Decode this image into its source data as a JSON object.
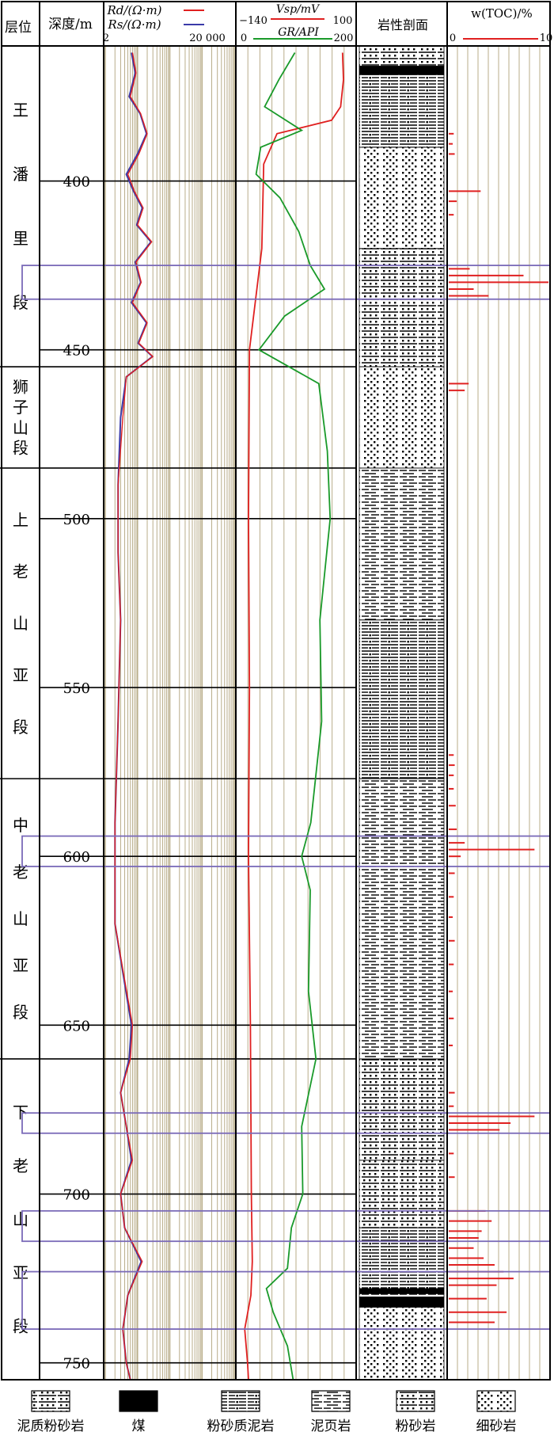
{
  "headers": {
    "layer": "层位",
    "depth": "深度/m",
    "rd": "Rd/(Ω·m)",
    "rs": "Rs/(Ω·m)",
    "res_min": "2",
    "res_max": "20 000",
    "vsp": "Vsp/mV",
    "vsp_min": "−140",
    "vsp_max": "100",
    "gr": "GR/API",
    "gr_min": "0",
    "gr_max": "200",
    "lith": "岩性剖面",
    "toc": "w(TOC)/%",
    "toc_min": "0",
    "toc_max": "10"
  },
  "colors": {
    "rd": "#e02020",
    "rs": "#3a3aa8",
    "vsp": "#e02020",
    "gr": "#1a9a2a",
    "toc": "#e02020",
    "grid": "#b9ad8a",
    "highlight": "#7a6ab8"
  },
  "formations": [
    {
      "name": "王潘里段",
      "top": 360,
      "bottom": 455
    },
    {
      "name": "狮子山段",
      "top": 455,
      "bottom": 485
    },
    {
      "name": "上老山亚段",
      "top": 485,
      "bottom": 577
    },
    {
      "name": "中老山亚段",
      "top": 577,
      "bottom": 660
    },
    {
      "name": "下老山亚段",
      "top": 660,
      "bottom": 755
    }
  ],
  "depth_ticks": [
    400,
    450,
    500,
    550,
    600,
    650,
    700,
    750
  ],
  "highlights": [
    {
      "top": 425,
      "bottom": 435
    },
    {
      "top": 594,
      "bottom": 603
    },
    {
      "top": 676,
      "bottom": 682
    },
    {
      "top": 705,
      "bottom": 714
    },
    {
      "top": 723,
      "bottom": 740
    }
  ],
  "legend": [
    {
      "label": "泥质粉砂岩",
      "pattern": "muddy-siltstone"
    },
    {
      "label": "煤",
      "pattern": "coal"
    },
    {
      "label": "粉砂质泥岩",
      "pattern": "silty-mudstone"
    },
    {
      "label": "泥页岩",
      "pattern": "shale"
    },
    {
      "label": "粉砂岩",
      "pattern": "siltstone"
    },
    {
      "label": "细砂岩",
      "pattern": "fine-sandstone"
    }
  ],
  "chart_data": {
    "type": "line",
    "depth_range": [
      360,
      755
    ],
    "resistivity": {
      "xlim": [
        2,
        20000
      ],
      "log": true,
      "depth": [
        362,
        368,
        375,
        380,
        386,
        392,
        398,
        403,
        408,
        413,
        418,
        424,
        430,
        436,
        442,
        448,
        452,
        458,
        470,
        490,
        510,
        530,
        560,
        590,
        620,
        650,
        660,
        670,
        680,
        690,
        700,
        710,
        720,
        730,
        740,
        750,
        755
      ],
      "rd": [
        14,
        18,
        12,
        25,
        40,
        22,
        10,
        16,
        30,
        20,
        55,
        18,
        26,
        14,
        40,
        22,
        60,
        9,
        7,
        5,
        5,
        6,
        5,
        4,
        4,
        14,
        12,
        6,
        9,
        14,
        6,
        8,
        28,
        10,
        7,
        9,
        12
      ],
      "rs": [
        13,
        17,
        11,
        24,
        38,
        20,
        9,
        15,
        28,
        19,
        52,
        17,
        25,
        13,
        38,
        21,
        58,
        9,
        6,
        5,
        5,
        6,
        5,
        4,
        4,
        13,
        11,
        6,
        9,
        13,
        6,
        8,
        26,
        10,
        7,
        9,
        12
      ]
    },
    "vsp": {
      "xlim": [
        -140,
        100
      ],
      "depth": [
        362,
        370,
        378,
        382,
        386,
        395,
        420,
        450,
        500,
        550,
        600,
        650,
        700,
        720,
        730,
        740,
        750,
        755
      ],
      "values": [
        78,
        80,
        74,
        55,
        -60,
        -88,
        -92,
        -118,
        -120,
        -118,
        -120,
        -116,
        -114,
        -112,
        -115,
        -128,
        -122,
        -120
      ]
    },
    "gr": {
      "xlim": [
        0,
        200
      ],
      "depth": [
        362,
        370,
        378,
        385,
        390,
        398,
        405,
        415,
        425,
        432,
        440,
        450,
        460,
        480,
        500,
        530,
        560,
        590,
        600,
        610,
        640,
        660,
        680,
        700,
        710,
        722,
        728,
        735,
        745,
        755
      ],
      "values": [
        98,
        70,
        45,
        110,
        38,
        30,
        72,
        105,
        125,
        150,
        80,
        35,
        140,
        155,
        160,
        142,
        145,
        126,
        110,
        125,
        122,
        135,
        110,
        112,
        92,
        85,
        48,
        60,
        85,
        95
      ]
    },
    "lithology": [
      {
        "top": 360,
        "bottom": 366,
        "type": "muddy-siltstone"
      },
      {
        "top": 366,
        "bottom": 368.5,
        "type": "coal"
      },
      {
        "top": 368.5,
        "bottom": 390,
        "type": "silty-mudstone"
      },
      {
        "top": 390,
        "bottom": 420,
        "type": "fine-sandstone"
      },
      {
        "top": 420,
        "bottom": 455,
        "type": "muddy-siltstone"
      },
      {
        "top": 455,
        "bottom": 485,
        "type": "fine-sandstone"
      },
      {
        "top": 485,
        "bottom": 530,
        "type": "shale"
      },
      {
        "top": 530,
        "bottom": 577,
        "type": "silty-mudstone"
      },
      {
        "top": 577,
        "bottom": 660,
        "type": "shale"
      },
      {
        "top": 660,
        "bottom": 690,
        "type": "muddy-siltstone"
      },
      {
        "top": 690,
        "bottom": 710,
        "type": "siltstone"
      },
      {
        "top": 710,
        "bottom": 728,
        "type": "silty-mudstone"
      },
      {
        "top": 728,
        "bottom": 729.5,
        "type": "coal"
      },
      {
        "top": 729.5,
        "bottom": 730.5,
        "type": "shale"
      },
      {
        "top": 730.5,
        "bottom": 733.5,
        "type": "coal"
      },
      {
        "top": 733.5,
        "bottom": 755,
        "type": "fine-sandstone"
      }
    ],
    "toc": {
      "xlim": [
        0,
        10
      ],
      "depth": [
        386,
        389,
        392,
        403,
        406,
        410,
        426,
        428,
        430,
        432,
        434,
        460,
        462,
        570,
        573,
        576,
        580,
        585,
        592,
        596,
        598,
        600,
        605,
        612,
        618,
        625,
        632,
        640,
        648,
        656,
        670,
        674,
        677,
        679,
        681,
        688,
        695,
        705,
        708,
        711,
        713,
        716,
        719,
        721,
        723,
        725,
        727,
        731,
        735,
        738
      ],
      "values": [
        0.5,
        0.4,
        0.6,
        3.2,
        0.8,
        0.5,
        2.1,
        7.5,
        10.0,
        2.5,
        4.0,
        2.0,
        1.6,
        0.5,
        0.6,
        0.5,
        0.5,
        0.7,
        0.8,
        1.6,
        8.6,
        1.2,
        0.6,
        0.5,
        0.4,
        0.6,
        0.5,
        0.4,
        0.5,
        0.4,
        0.6,
        0.5,
        8.6,
        6.2,
        5.1,
        0.5,
        0.6,
        3.7,
        4.3,
        3.3,
        3.0,
        2.5,
        3.5,
        4.6,
        5.5,
        6.5,
        4.8,
        3.8,
        5.8,
        4.6
      ]
    }
  }
}
